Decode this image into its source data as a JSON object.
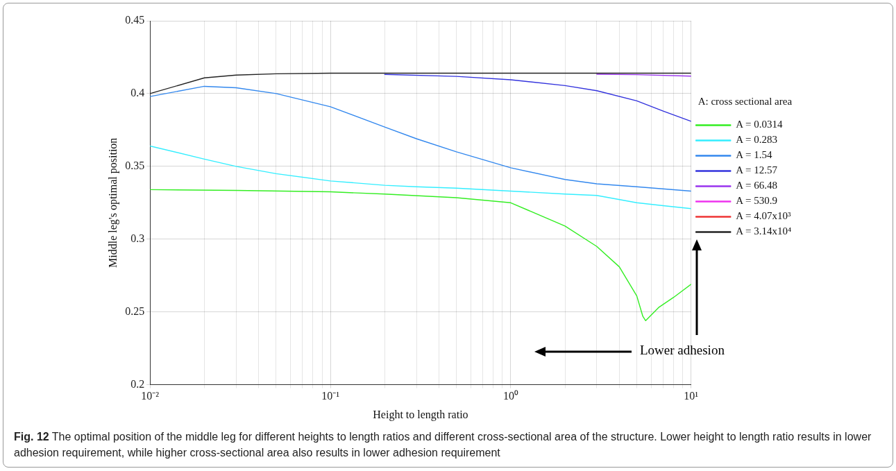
{
  "chart_data": {
    "type": "line",
    "xlabel": "Height to length ratio",
    "ylabel": "Middle leg's optimal position",
    "legend_title": "A: cross sectional area",
    "legend": "right",
    "grid": true,
    "log": "x",
    "marker": "none",
    "line_style": "solid",
    "xlim": [
      0.01,
      10
    ],
    "ylim": [
      0.2,
      0.45
    ],
    "xticks": [
      {
        "value": 0.01,
        "label": "10⁻²"
      },
      {
        "value": 0.02,
        "label": null
      },
      {
        "value": 0.03,
        "label": null
      },
      {
        "value": 0.04,
        "label": null
      },
      {
        "value": 0.05,
        "label": null
      },
      {
        "value": 0.06,
        "label": null
      },
      {
        "value": 0.07,
        "label": null
      },
      {
        "value": 0.08,
        "label": null
      },
      {
        "value": 0.09,
        "label": null
      },
      {
        "value": 0.1,
        "label": "10⁻¹"
      },
      {
        "value": 0.2,
        "label": null
      },
      {
        "value": 0.3,
        "label": null
      },
      {
        "value": 0.4,
        "label": null
      },
      {
        "value": 0.5,
        "label": null
      },
      {
        "value": 0.6,
        "label": null
      },
      {
        "value": 0.7,
        "label": null
      },
      {
        "value": 0.8,
        "label": null
      },
      {
        "value": 0.9,
        "label": null
      },
      {
        "value": 1,
        "label": "10⁰"
      },
      {
        "value": 2,
        "label": null
      },
      {
        "value": 3,
        "label": null
      },
      {
        "value": 4,
        "label": null
      },
      {
        "value": 5,
        "label": null
      },
      {
        "value": 6,
        "label": null
      },
      {
        "value": 7,
        "label": null
      },
      {
        "value": 8,
        "label": null
      },
      {
        "value": 9,
        "label": null
      },
      {
        "value": 10,
        "label": "10¹"
      }
    ],
    "yticks": [
      0.2,
      0.25,
      0.3,
      0.35,
      0.4,
      0.45
    ],
    "series": [
      {
        "name": "A = 0.0314",
        "color": "#33ee22",
        "x": [
          0.01,
          0.03,
          0.1,
          0.2,
          0.5,
          1,
          2,
          3,
          4,
          5,
          5.4,
          5.6,
          6.6,
          8,
          10
        ],
        "values": [
          0.334,
          0.3335,
          0.3325,
          0.331,
          0.3285,
          0.325,
          0.309,
          0.295,
          0.281,
          0.261,
          0.247,
          0.244,
          0.253,
          0.26,
          0.269
        ]
      },
      {
        "name": "A = 0.283",
        "color": "#33eeff",
        "x": [
          0.01,
          0.02,
          0.03,
          0.05,
          0.1,
          0.2,
          0.3,
          0.5,
          1,
          2,
          3,
          5,
          7,
          10
        ],
        "values": [
          0.364,
          0.355,
          0.35,
          0.345,
          0.34,
          0.337,
          0.336,
          0.335,
          0.333,
          0.331,
          0.33,
          0.325,
          0.323,
          0.321
        ]
      },
      {
        "name": "A = 1.54",
        "color": "#3388ee",
        "x": [
          0.01,
          0.02,
          0.03,
          0.05,
          0.1,
          0.2,
          0.3,
          0.5,
          1,
          2,
          3,
          5,
          10
        ],
        "values": [
          0.398,
          0.405,
          0.404,
          0.4,
          0.391,
          0.377,
          0.369,
          0.36,
          0.349,
          0.341,
          0.338,
          0.336,
          0.333
        ]
      },
      {
        "name": "A = 12.57",
        "color": "#3333dd",
        "x": [
          0.2,
          0.5,
          1,
          2,
          3,
          5,
          7,
          10
        ],
        "values": [
          0.4132,
          0.4118,
          0.4095,
          0.4055,
          0.402,
          0.395,
          0.388,
          0.381
        ]
      },
      {
        "name": "A = 66.48",
        "color": "#9933ee",
        "x": [
          3,
          5,
          10
        ],
        "values": [
          0.4133,
          0.413,
          0.412
        ]
      },
      {
        "name": "A = 530.9",
        "color": "#ee33ee"
      },
      {
        "name": "A = 4.07x10³",
        "color": "#ee3333"
      },
      {
        "name": "A = 3.14x10⁴",
        "color": "#222222",
        "x": [
          0.01,
          0.02,
          0.03,
          0.05,
          0.1,
          1,
          10
        ],
        "values": [
          0.4,
          0.4108,
          0.4127,
          0.4136,
          0.414,
          0.414,
          0.414
        ]
      }
    ],
    "annotations": [
      "Lower adhesion",
      "Fig. 12  The optimal position of the middle leg for different heights to length ratios and different cross-sectional area of the structure. Lower height to length ratio results in lower adhesion requirement, while higher cross-sectional area also results in lower adhesion requirement"
    ]
  }
}
